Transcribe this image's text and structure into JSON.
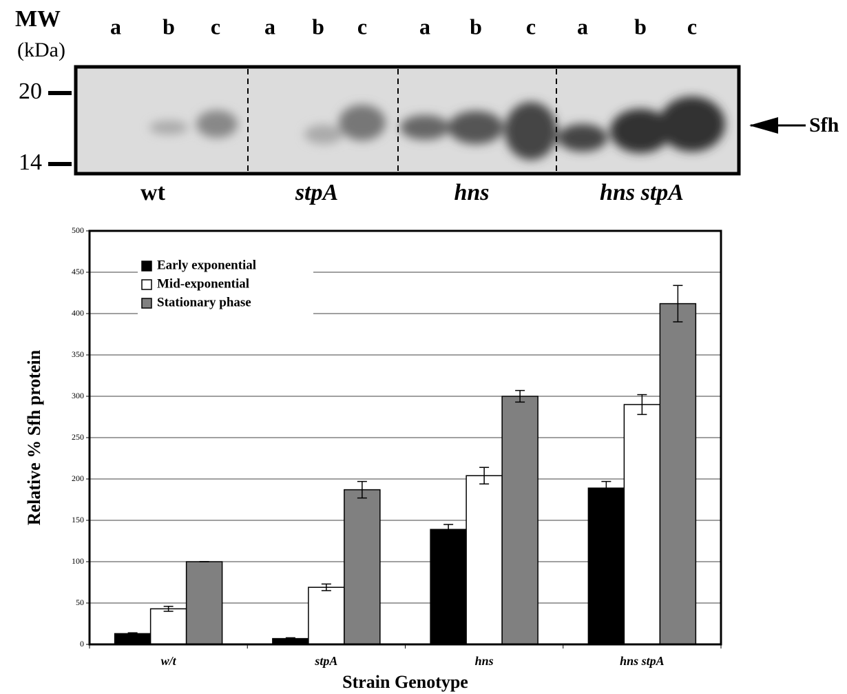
{
  "blot": {
    "mw_label": "MW",
    "unit_label": "(kDa)",
    "lanes": [
      "a",
      "b",
      "c",
      "a",
      "b",
      "c",
      "a",
      "b",
      "c",
      "a",
      "b",
      "c"
    ],
    "markers": [
      "20",
      "14"
    ],
    "protein": "Sfh",
    "strains": [
      "wt",
      "stpA",
      "hns",
      "hns stpA"
    ]
  },
  "chart_data": {
    "type": "bar",
    "x_label": "Strain Genotype",
    "y_label": "Relative % Sfh protein",
    "categories": [
      "w/t",
      "stpA",
      "hns",
      "hns stpA"
    ],
    "series": [
      {
        "name": "Early exponential",
        "color": "#000000",
        "values": [
          13,
          7,
          139,
          189
        ],
        "errors": [
          1,
          1,
          6,
          8
        ]
      },
      {
        "name": "Mid-exponential",
        "color": "#ffffff",
        "values": [
          43,
          69,
          204,
          290
        ],
        "errors": [
          3,
          4,
          10,
          12
        ]
      },
      {
        "name": "Stationary phase",
        "color": "#808080",
        "values": [
          100,
          187,
          300,
          412
        ],
        "errors": [
          0,
          10,
          7,
          22
        ]
      }
    ],
    "ylim": [
      0,
      500
    ],
    "yticks": [
      0,
      50,
      100,
      150,
      200,
      250,
      300,
      350,
      400,
      450,
      500
    ],
    "grid": true,
    "legend": "upper-left"
  }
}
